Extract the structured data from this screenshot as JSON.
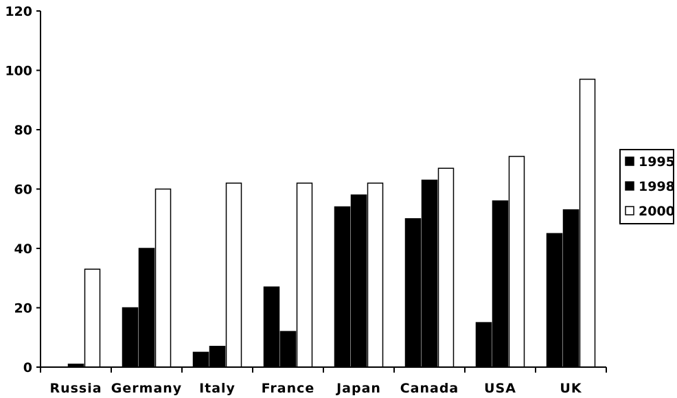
{
  "chart_data": {
    "type": "bar",
    "title": "",
    "xlabel": "",
    "ylabel": "",
    "categories": [
      "Russia",
      "Germany",
      "Italy",
      "France",
      "Japan",
      "Canada",
      "USA",
      "UK"
    ],
    "series": [
      {
        "name": "1995",
        "color": "#000000",
        "values": [
          0,
          20,
          5,
          27,
          54,
          50,
          15,
          45
        ]
      },
      {
        "name": "1998",
        "color": "#000000",
        "values": [
          1,
          40,
          7,
          12,
          58,
          63,
          56,
          53
        ]
      },
      {
        "name": "2000",
        "color": "#ffffff",
        "values": [
          33,
          60,
          62,
          62,
          62,
          67,
          71,
          97
        ]
      }
    ],
    "ylim": [
      0,
      120
    ],
    "yticks": [
      0,
      20,
      40,
      60,
      80,
      100,
      120
    ],
    "grid": false,
    "legend_position": "right"
  }
}
